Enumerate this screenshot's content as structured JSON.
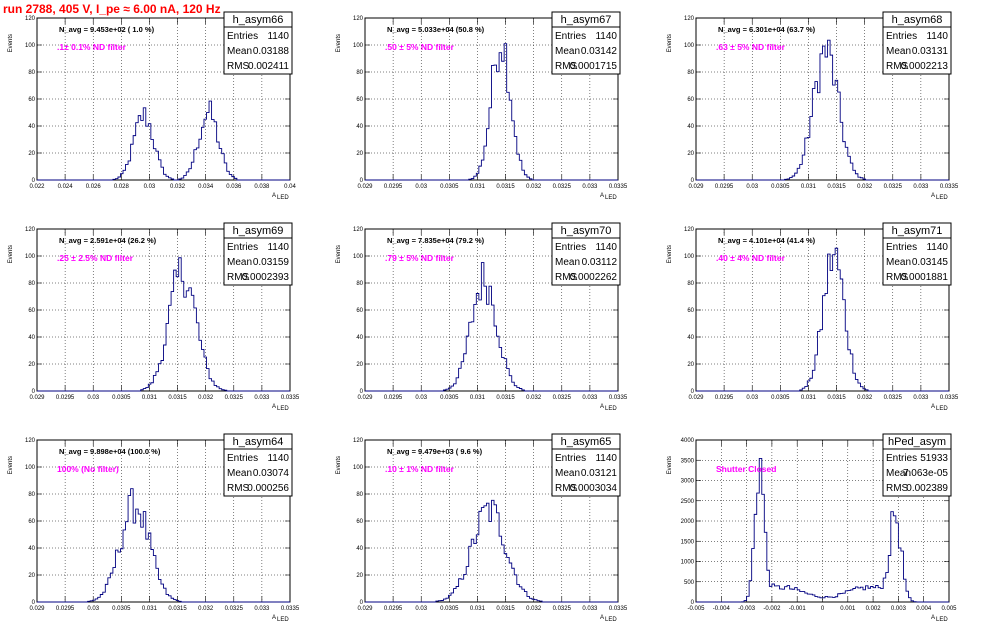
{
  "page_title": "run 2788,   405 V, I_pe ≈ 6.00 nA, 120 Hz",
  "chart_data": [
    {
      "type": "histogram",
      "name": "h_asym66",
      "x_range": [
        0.022,
        0.04
      ],
      "x_ticks": [
        "0.022",
        "0.024",
        "0.026",
        "0.028",
        "0.03",
        "0.032",
        "0.034",
        "0.036",
        "0.038",
        "0.04"
      ],
      "y_range": [
        0,
        120
      ],
      "y_ticks": [
        "0",
        "20",
        "40",
        "60",
        "80",
        "100",
        "120"
      ],
      "ylabel": "Events",
      "xlabel": "A",
      "xlabel_sub": "LED",
      "annotation": "N_avg = 9.453e+02 ( 1.0 %)",
      "note": ".1± 0.1% ND filter",
      "stats": [
        {
          "label": "Entries",
          "value": "1140"
        },
        {
          "label": "Mean",
          "value": "0.03188"
        },
        {
          "label": "RMS",
          "value": "0.002411"
        }
      ],
      "profile": [
        {
          "mean": 0.0296,
          "sigma": 0.0007,
          "height": 48
        },
        {
          "mean": 0.0342,
          "sigma": 0.0007,
          "height": 50
        }
      ],
      "grid": true
    },
    {
      "type": "histogram",
      "name": "h_asym67",
      "x_range": [
        0.029,
        0.0335
      ],
      "x_ticks": [
        "0.029",
        "0.0295",
        "0.03",
        "0.0305",
        "0.031",
        "0.0315",
        "0.032",
        "0.0325",
        "0.033",
        "0.0335"
      ],
      "y_range": [
        0,
        120
      ],
      "y_ticks": [
        "0",
        "20",
        "40",
        "60",
        "80",
        "100",
        "120"
      ],
      "ylabel": "Events",
      "xlabel": "A",
      "xlabel_sub": "LED",
      "annotation": "N_avg = 5.033e+04 (50.8 %)",
      "note": ".50 ± 5% ND filter",
      "stats": [
        {
          "label": "Entries",
          "value": "1140"
        },
        {
          "label": "Mean",
          "value": "0.03142"
        },
        {
          "label": "RMS",
          "value": "0.0001715"
        }
      ],
      "profile": [
        {
          "mean": 0.03142,
          "sigma": 0.00017,
          "height": 105
        }
      ],
      "grid": true
    },
    {
      "type": "histogram",
      "name": "h_asym68",
      "x_range": [
        0.029,
        0.0335
      ],
      "x_ticks": [
        "0.029",
        "0.0295",
        "0.03",
        "0.0305",
        "0.031",
        "0.0315",
        "0.032",
        "0.0325",
        "0.033",
        "0.0335"
      ],
      "y_range": [
        0,
        120
      ],
      "y_ticks": [
        "0",
        "20",
        "40",
        "60",
        "80",
        "100",
        "120"
      ],
      "ylabel": "Events",
      "xlabel": "A",
      "xlabel_sub": "LED",
      "annotation": "N_avg = 6.301e+04 (63.7 %)",
      "note": ".63 ± 5% ND filter",
      "stats": [
        {
          "label": "Entries",
          "value": "1140"
        },
        {
          "label": "Mean",
          "value": "0.03131"
        },
        {
          "label": "RMS",
          "value": "0.0002213"
        }
      ],
      "profile": [
        {
          "mean": 0.03131,
          "sigma": 0.00022,
          "height": 95
        }
      ],
      "grid": true
    },
    {
      "type": "histogram",
      "name": "h_asym69",
      "x_range": [
        0.029,
        0.0335
      ],
      "x_ticks": [
        "0.029",
        "0.0295",
        "0.03",
        "0.0305",
        "0.031",
        "0.0315",
        "0.032",
        "0.0325",
        "0.033",
        "0.0335"
      ],
      "y_range": [
        0,
        120
      ],
      "y_ticks": [
        "0",
        "20",
        "40",
        "60",
        "80",
        "100",
        "120"
      ],
      "ylabel": "Events",
      "xlabel": "A",
      "xlabel_sub": "LED",
      "annotation": "N_avg = 2.591e+04 (26.2 %)",
      "note": ".25 ± 2.5% ND filter",
      "stats": [
        {
          "label": "Entries",
          "value": "1140"
        },
        {
          "label": "Mean",
          "value": "0.03159"
        },
        {
          "label": "RMS",
          "value": "0.0002393"
        }
      ],
      "profile": [
        {
          "mean": 0.03159,
          "sigma": 0.00024,
          "height": 88
        }
      ],
      "grid": true
    },
    {
      "type": "histogram",
      "name": "h_asym70",
      "x_range": [
        0.029,
        0.0335
      ],
      "x_ticks": [
        "0.029",
        "0.0295",
        "0.03",
        "0.0305",
        "0.031",
        "0.0315",
        "0.032",
        "0.0325",
        "0.033",
        "0.0335"
      ],
      "y_range": [
        0,
        120
      ],
      "y_ticks": [
        "0",
        "20",
        "40",
        "60",
        "80",
        "100",
        "120"
      ],
      "ylabel": "Events",
      "xlabel": "A",
      "xlabel_sub": "LED",
      "annotation": "N_avg = 7.835e+04 (79.2 %)",
      "note": ".79 ± 5% ND filter",
      "stats": [
        {
          "label": "Entries",
          "value": "1140"
        },
        {
          "label": "Mean",
          "value": "0.03112"
        },
        {
          "label": "RMS",
          "value": "0.0002262"
        }
      ],
      "profile": [
        {
          "mean": 0.03112,
          "sigma": 0.00023,
          "height": 83
        }
      ],
      "grid": true
    },
    {
      "type": "histogram",
      "name": "h_asym71",
      "x_range": [
        0.029,
        0.0335
      ],
      "x_ticks": [
        "0.029",
        "0.0295",
        "0.03",
        "0.0305",
        "0.031",
        "0.0315",
        "0.032",
        "0.0325",
        "0.033",
        "0.0335"
      ],
      "y_range": [
        0,
        120
      ],
      "y_ticks": [
        "0",
        "20",
        "40",
        "60",
        "80",
        "100",
        "120"
      ],
      "ylabel": "Events",
      "xlabel": "A",
      "xlabel_sub": "LED",
      "annotation": "N_avg = 4.101e+04 (41.4 %)",
      "note": ".40 ± 4% ND filter",
      "stats": [
        {
          "label": "Entries",
          "value": "1140"
        },
        {
          "label": "Mean",
          "value": "0.03145"
        },
        {
          "label": "RMS",
          "value": "0.0001881"
        }
      ],
      "profile": [
        {
          "mean": 0.03145,
          "sigma": 0.00019,
          "height": 100
        }
      ],
      "grid": true
    },
    {
      "type": "histogram",
      "name": "h_asym64",
      "x_range": [
        0.029,
        0.0335
      ],
      "x_ticks": [
        "0.029",
        "0.0295",
        "0.03",
        "0.0305",
        "0.031",
        "0.0315",
        "0.032",
        "0.0325",
        "0.033",
        "0.0335"
      ],
      "y_range": [
        0,
        120
      ],
      "y_ticks": [
        "0",
        "20",
        "40",
        "60",
        "80",
        "100",
        "120"
      ],
      "ylabel": "Events",
      "xlabel": "A",
      "xlabel_sub": "LED",
      "annotation": "N_avg = 9.898e+04 (100.0 %)",
      "note": "100% (No filter)",
      "stats": [
        {
          "label": "Entries",
          "value": "1140"
        },
        {
          "label": "Mean",
          "value": "0.03074"
        },
        {
          "label": "RMS",
          "value": "0.000256"
        }
      ],
      "profile": [
        {
          "mean": 0.03074,
          "sigma": 0.00026,
          "height": 72
        }
      ],
      "grid": true
    },
    {
      "type": "histogram",
      "name": "h_asym65",
      "x_range": [
        0.029,
        0.0335
      ],
      "x_ticks": [
        "0.029",
        "0.0295",
        "0.03",
        "0.0305",
        "0.031",
        "0.0315",
        "0.032",
        "0.0325",
        "0.033",
        "0.0335"
      ],
      "y_range": [
        0,
        120
      ],
      "y_ticks": [
        "0",
        "20",
        "40",
        "60",
        "80",
        "100",
        "120"
      ],
      "ylabel": "Events",
      "xlabel": "A",
      "xlabel_sub": "LED",
      "annotation": "N_avg = 9.479e+03 ( 9.6 %)",
      "note": ".10 ± 1% ND filter",
      "stats": [
        {
          "label": "Entries",
          "value": "1140"
        },
        {
          "label": "Mean",
          "value": "0.03121"
        },
        {
          "label": "RMS",
          "value": "0.0003034"
        }
      ],
      "profile": [
        {
          "mean": 0.03121,
          "sigma": 0.0003,
          "height": 68
        }
      ],
      "grid": true
    },
    {
      "type": "histogram",
      "name": "hPed_asym",
      "x_range": [
        -0.005,
        0.005
      ],
      "x_ticks": [
        "-0.005",
        "-0.004",
        "-0.003",
        "-0.002",
        "-0.001",
        "0",
        "0.001",
        "0.002",
        "0.003",
        "0.004",
        "0.005"
      ],
      "y_range": [
        0,
        4000
      ],
      "y_ticks": [
        "0",
        "500",
        "1000",
        "1500",
        "2000",
        "2500",
        "3000",
        "3500",
        "4000"
      ],
      "ylabel": "Events",
      "xlabel": "A",
      "xlabel_sub": "LED",
      "annotation": "",
      "note": "Shutter Closed",
      "stats": [
        {
          "label": "Entries",
          "value": "51933"
        },
        {
          "label": "Mean",
          "value": "7.063e-05"
        },
        {
          "label": "RMS",
          "value": "0.002389"
        }
      ],
      "profile": [
        {
          "mean": -0.0025,
          "sigma": 0.00018,
          "height": 3300
        },
        {
          "mean": 0.0029,
          "sigma": 0.00022,
          "height": 2050
        }
      ],
      "baseline": 300,
      "grid": true
    }
  ]
}
